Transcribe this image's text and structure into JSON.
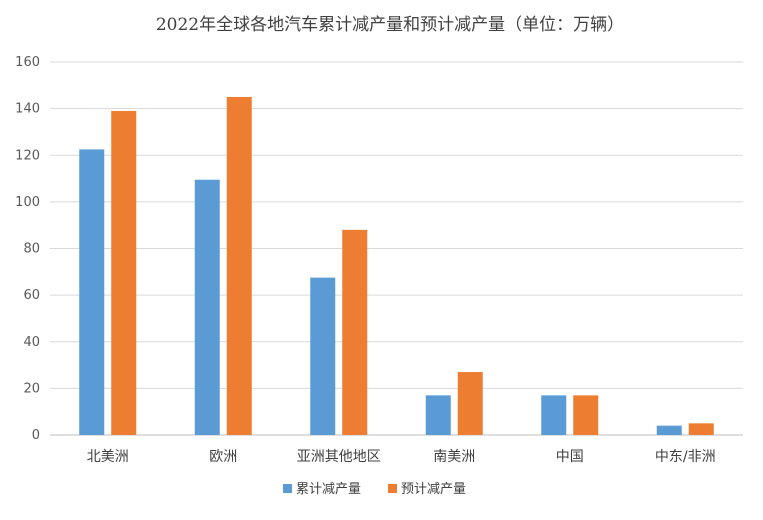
{
  "chart_data": {
    "type": "bar",
    "title": "2022年全球各地汽车累计减产量和预计减产量（单位：万辆）",
    "categories": [
      "北美洲",
      "欧洲",
      "亚洲其他地区",
      "南美洲",
      "中国",
      "中东/非洲"
    ],
    "series": [
      {
        "name": "累计减产量",
        "color": "#5b9bd5",
        "values": [
          122.5,
          109.5,
          67.5,
          17,
          17,
          4
        ]
      },
      {
        "name": "预计减产量",
        "color": "#ed7d31",
        "values": [
          139,
          145,
          88,
          27,
          17,
          5
        ]
      }
    ],
    "ylim": [
      0,
      160
    ],
    "yticks": [
      0,
      20,
      40,
      60,
      80,
      100,
      120,
      140,
      160
    ],
    "grid": true,
    "legend": "bottom"
  }
}
